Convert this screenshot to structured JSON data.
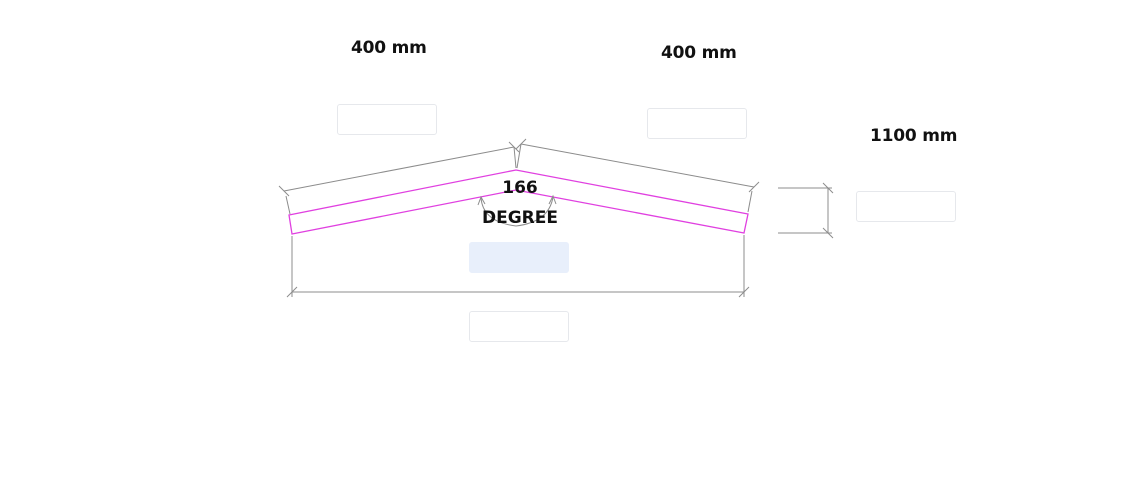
{
  "dimensions": {
    "left_length": "400 mm",
    "right_length": "400 mm",
    "height": "1100 mm",
    "angle_value": "166",
    "angle_unit": "DEGREE"
  },
  "inputs": {
    "left_length": "",
    "right_length": "",
    "height": "",
    "angle": "",
    "width": ""
  },
  "colors": {
    "profile": "#e040e0",
    "dimension_line": "#8c8c8c",
    "input_active": "#e8effb"
  }
}
